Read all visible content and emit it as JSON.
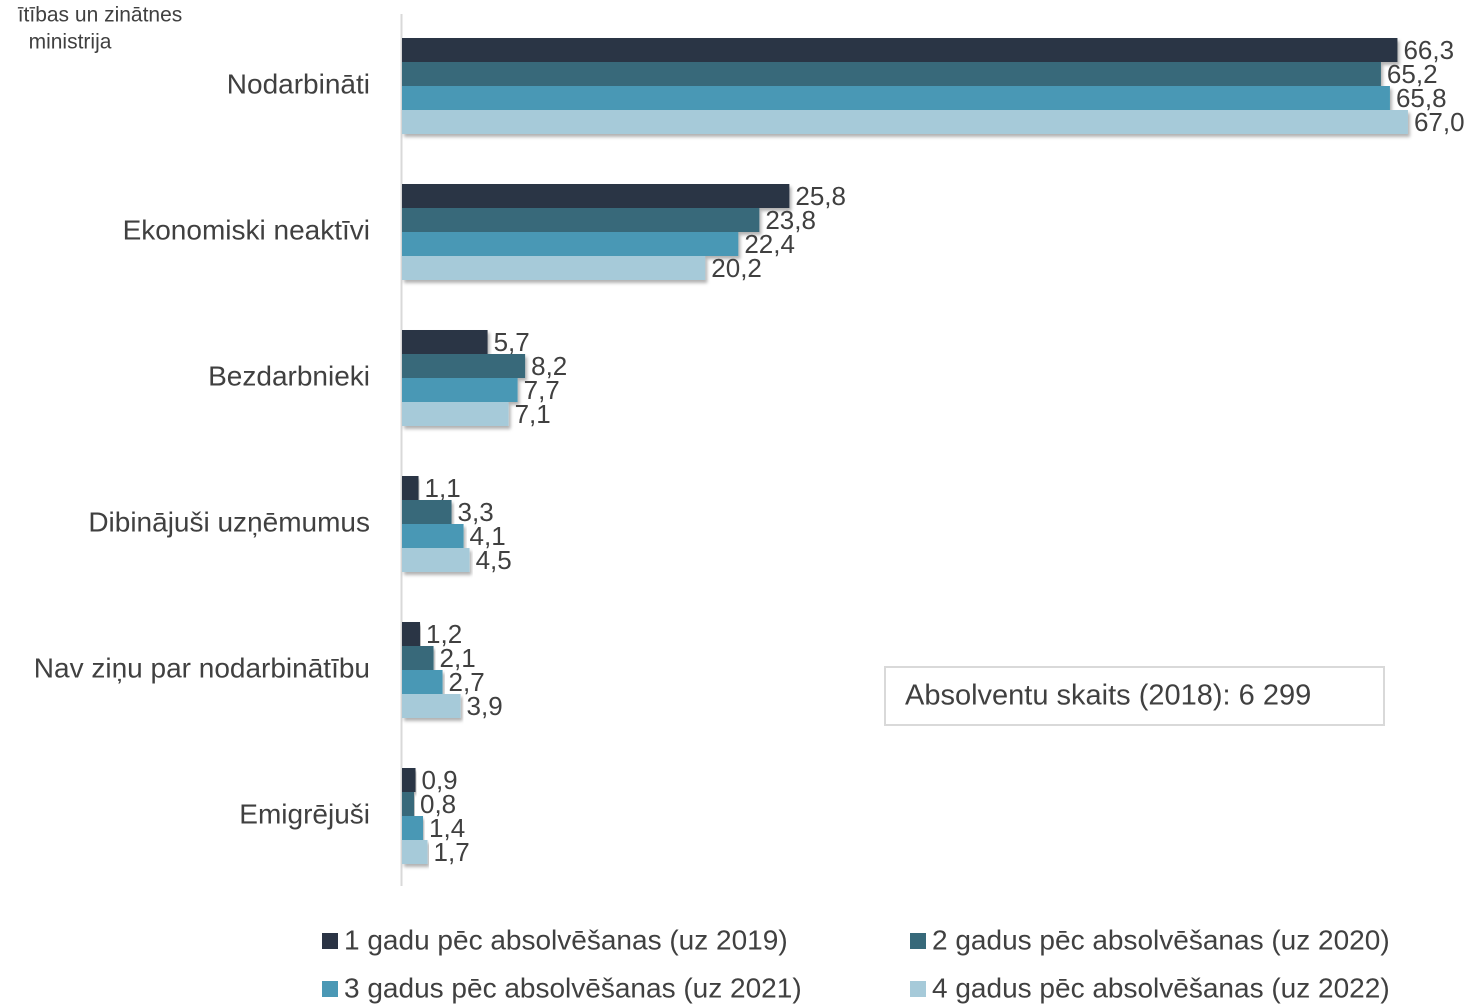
{
  "chart_data": {
    "type": "bar",
    "orientation": "horizontal",
    "header_text": [
      "ītības un zinātnes",
      "ministrija"
    ],
    "categories": [
      "Nodarbināti",
      "Ekonomiski neaktīvi",
      "Bezdarbnieki",
      "Dibinājuši uzņēmumus",
      "Nav ziņu par nodarbinātību",
      "Emigrējuši"
    ],
    "series": [
      {
        "name": "1 gadu pēc absolvēšanas (uz 2019)",
        "color": "#2b3445",
        "values": [
          66.3,
          25.8,
          5.7,
          1.1,
          1.2,
          0.9
        ],
        "value_labels": [
          "66,3",
          "25,8",
          "5,7",
          "1,1",
          "1,2",
          "0,9"
        ]
      },
      {
        "name": "2 gadus pēc absolvēšanas (uz 2020)",
        "color": "#37697a",
        "values": [
          65.2,
          23.8,
          8.2,
          3.3,
          2.1,
          0.8
        ],
        "value_labels": [
          "65,2",
          "23,8",
          "8,2",
          "3,3",
          "2,1",
          "0,8"
        ]
      },
      {
        "name": "3 gadus pēc absolvēšanas (uz 2021)",
        "color": "#4a98b5",
        "values": [
          65.8,
          22.4,
          7.7,
          4.1,
          2.7,
          1.4
        ],
        "value_labels": [
          "65,8",
          "22,4",
          "7,7",
          "4,1",
          "2,7",
          "1,4"
        ]
      },
      {
        "name": "4 gadus pēc absolvēšanas (uz 2022)",
        "color": "#a6cad9",
        "values": [
          67.0,
          20.2,
          7.1,
          4.5,
          3.9,
          1.7
        ],
        "value_labels": [
          "67,0",
          "20,2",
          "7,1",
          "4,5",
          "3,9",
          "1,7"
        ]
      }
    ],
    "annotation": "Absolventu skaits (2018): 6 299",
    "xlim": [
      0,
      70
    ]
  }
}
